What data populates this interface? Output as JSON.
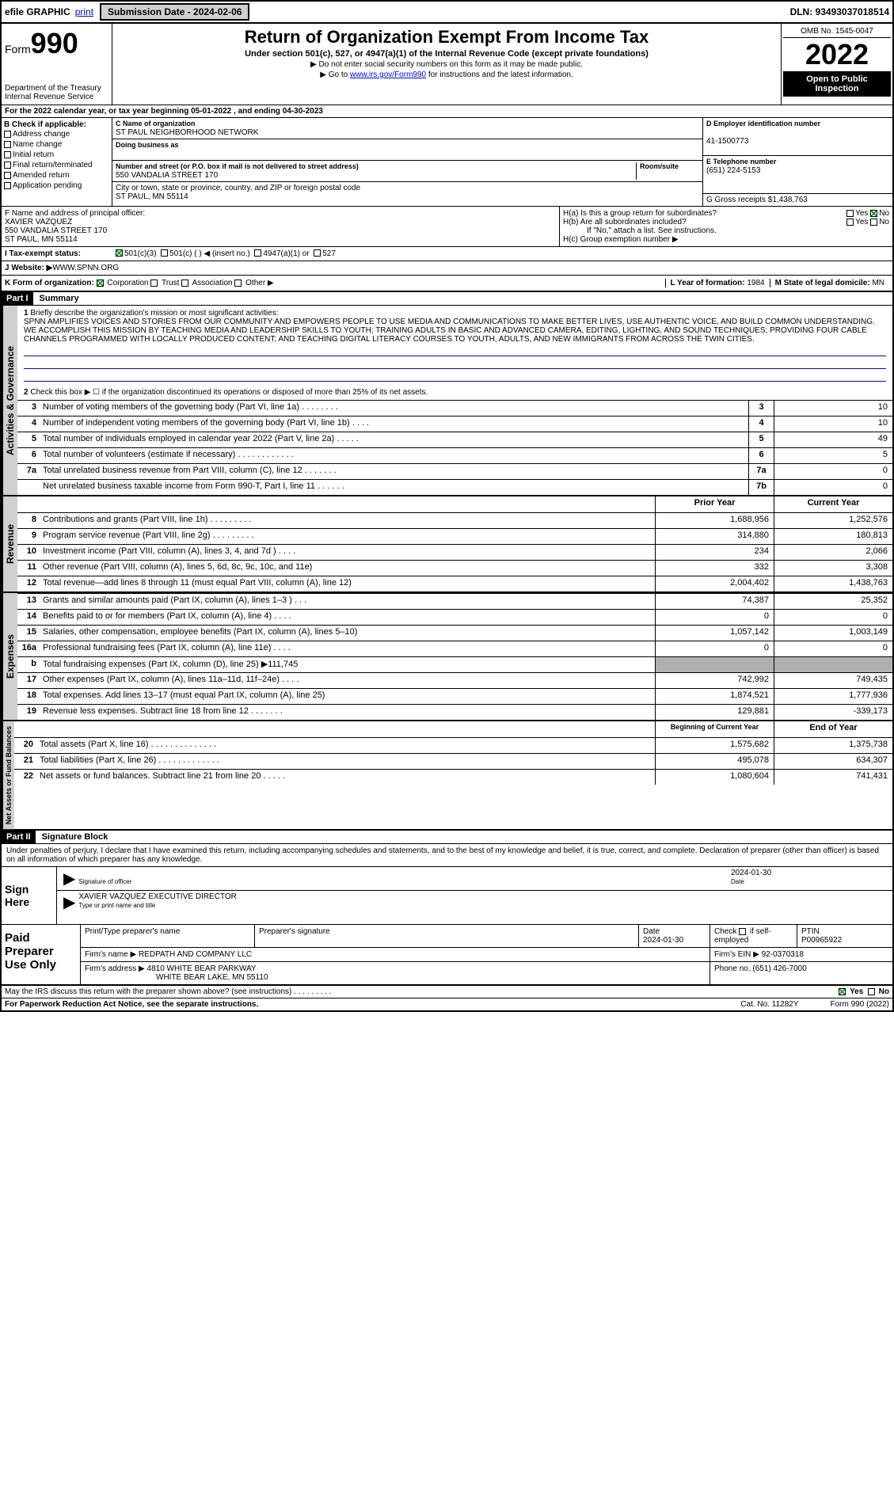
{
  "top": {
    "efile": "efile GRAPHIC",
    "print": "print",
    "sub_label": "Submission Date - 2024-02-06",
    "dln": "DLN: 93493037018514"
  },
  "header": {
    "form_label": "Form",
    "form_num": "990",
    "dept": "Department of the Treasury",
    "irs": "Internal Revenue Service",
    "title": "Return of Organization Exempt From Income Tax",
    "sub": "Under section 501(c), 527, or 4947(a)(1) of the Internal Revenue Code (except private foundations)",
    "note1": "▶ Do not enter social security numbers on this form as it may be made public.",
    "note2": "▶ Go to ",
    "link": "www.irs.gov/Form990",
    "note2b": " for instructions and the latest information.",
    "omb": "OMB No. 1545-0047",
    "year": "2022",
    "open": "Open to Public Inspection"
  },
  "a": {
    "line": "For the 2022 calendar year, or tax year beginning 05-01-2022   , and ending 04-30-2023",
    "b_label": "B Check if applicable:",
    "checks": [
      "Address change",
      "Name change",
      "Initial return",
      "Final return/terminated",
      "Amended return",
      "Application pending"
    ],
    "c_lbl": "C Name of organization",
    "c_name": "ST PAUL NEIGHBORHOOD NETWORK",
    "dba_lbl": "Doing business as",
    "addr_lbl": "Number and street (or P.O. box if mail is not delivered to street address)",
    "addr": "550 VANDALIA STREET 170",
    "room_lbl": "Room/suite",
    "city_lbl": "City or town, state or province, country, and ZIP or foreign postal code",
    "city": "ST PAUL, MN  55114",
    "d_lbl": "D Employer identification number",
    "d_val": "41-1500773",
    "e_lbl": "E Telephone number",
    "e_val": "(651) 224-5153",
    "g_lbl": "G Gross receipts $",
    "g_val": "1,438,763",
    "f_lbl": "F  Name and address of principal officer:",
    "f_name": "XAVIER VAZQUEZ",
    "f_addr1": "550 VANDALIA STREET 170",
    "f_addr2": "ST PAUL, MN  55114",
    "h_a": "H(a)  Is this a group return for subordinates?",
    "h_b": "H(b)  Are all subordinates included?",
    "h_note": "If \"No,\" attach a list. See instructions.",
    "h_c": "H(c)  Group exemption number ▶",
    "yes": "Yes",
    "no": "No"
  },
  "i": {
    "lbl": "I   Tax-exempt status:",
    "opts": [
      "501(c)(3)",
      "501(c) (  ) ◀ (insert no.)",
      "4947(a)(1) or",
      "527"
    ]
  },
  "j": {
    "lbl": "J   Website: ▶",
    "val": " WWW.SPNN.ORG"
  },
  "k": {
    "lbl": "K Form of organization:",
    "opts": [
      "Corporation",
      "Trust",
      "Association",
      "Other ▶"
    ],
    "l_lbl": "L Year of formation:",
    "l_val": "1984",
    "m_lbl": "M State of legal domicile:",
    "m_val": "MN"
  },
  "part1": {
    "hdr": "Part I",
    "title": "Summary",
    "tab1": "Activities & Governance",
    "tab2": "Revenue",
    "tab3": "Expenses",
    "tab4": "Net Assets or Fund Balances",
    "q1": "Briefly describe the organization's mission or most significant activities:",
    "mission": "SPNN AMPLIFIES VOICES AND STORIES FROM OUR COMMUNITY AND EMPOWERS PEOPLE TO USE MEDIA AND COMMUNICATIONS TO MAKE BETTER LIVES, USE AUTHENTIC VOICE, AND BUILD COMMON UNDERSTANDING. WE ACCOMPLISH THIS MISSION BY TEACHING MEDIA AND LEADERSHIP SKILLS TO YOUTH; TRAINING ADULTS IN BASIC AND ADVANCED CAMERA, EDITING, LIGHTING, AND SOUND TECHNIQUES; PROVIDING FOUR CABLE CHANNELS PROGRAMMED WITH LOCALLY PRODUCED CONTENT; AND TEACHING DIGITAL LITERACY COURSES TO YOUTH, ADULTS, AND NEW IMMIGRANTS FROM ACROSS THE TWIN CITIES.",
    "q2": "Check this box ▶ ☐ if the organization discontinued its operations or disposed of more than 25% of its net assets.",
    "lines_gov": [
      {
        "n": "3",
        "t": "Number of voting members of the governing body (Part VI, line 1a)   .    .    .    .    .    .    .    .",
        "b": "3",
        "v": "10"
      },
      {
        "n": "4",
        "t": "Number of independent voting members of the governing body (Part VI, line 1b)   .    .    .    .",
        "b": "4",
        "v": "10"
      },
      {
        "n": "5",
        "t": "Total number of individuals employed in calendar year 2022 (Part V, line 2a)   .    .    .    .    .",
        "b": "5",
        "v": "49"
      },
      {
        "n": "6",
        "t": "Total number of volunteers (estimate if necessary)   .    .    .    .    .    .    .    .    .    .    .    .",
        "b": "6",
        "v": "5"
      },
      {
        "n": "7a",
        "t": "Total unrelated business revenue from Part VIII, column (C), line 12   .    .    .    .    .    .    .",
        "b": "7a",
        "v": "0"
      },
      {
        "n": "",
        "t": "Net unrelated business taxable income from Form 990-T, Part I, line 11   .    .    .    .    .    .",
        "b": "7b",
        "v": "0"
      }
    ],
    "hdr_prior": "Prior Year",
    "hdr_curr": "Current Year",
    "lines_rev": [
      {
        "n": "8",
        "t": "Contributions and grants (Part VIII, line 1h)   .    .    .    .    .    .    .    .    .",
        "p": "1,688,956",
        "c": "1,252,576"
      },
      {
        "n": "9",
        "t": "Program service revenue (Part VIII, line 2g)   .    .    .    .    .    .    .    .    .",
        "p": "314,880",
        "c": "180,813"
      },
      {
        "n": "10",
        "t": "Investment income (Part VIII, column (A), lines 3, 4, and 7d )   .    .    .    .",
        "p": "234",
        "c": "2,066"
      },
      {
        "n": "11",
        "t": "Other revenue (Part VIII, column (A), lines 5, 6d, 8c, 9c, 10c, and 11e)",
        "p": "332",
        "c": "3,308"
      },
      {
        "n": "12",
        "t": "Total revenue—add lines 8 through 11 (must equal Part VIII, column (A), line 12)",
        "p": "2,004,402",
        "c": "1,438,763"
      }
    ],
    "lines_exp": [
      {
        "n": "13",
        "t": "Grants and similar amounts paid (Part IX, column (A), lines 1–3 )   .    .    .",
        "p": "74,387",
        "c": "25,352"
      },
      {
        "n": "14",
        "t": "Benefits paid to or for members (Part IX, column (A), line 4)   .    .    .    .",
        "p": "0",
        "c": "0"
      },
      {
        "n": "15",
        "t": "Salaries, other compensation, employee benefits (Part IX, column (A), lines 5–10)",
        "p": "1,057,142",
        "c": "1,003,149"
      },
      {
        "n": "16a",
        "t": "Professional fundraising fees (Part IX, column (A), line 11e)   .    .    .    .",
        "p": "0",
        "c": "0"
      },
      {
        "n": "b",
        "t": "Total fundraising expenses (Part IX, column (D), line 25) ▶111,745",
        "p": "",
        "c": "",
        "shade": true
      },
      {
        "n": "17",
        "t": "Other expenses (Part IX, column (A), lines 11a–11d, 11f–24e)   .    .    .    .",
        "p": "742,992",
        "c": "749,435"
      },
      {
        "n": "18",
        "t": "Total expenses. Add lines 13–17 (must equal Part IX, column (A), line 25)",
        "p": "1,874,521",
        "c": "1,777,936"
      },
      {
        "n": "19",
        "t": "Revenue less expenses. Subtract line 18 from line 12   .    .    .    .    .    .    .",
        "p": "129,881",
        "c": "-339,173"
      }
    ],
    "hdr_begin": "Beginning of Current Year",
    "hdr_end": "End of Year",
    "lines_net": [
      {
        "n": "20",
        "t": "Total assets (Part X, line 16)   .    .    .    .    .    .    .    .    .    .    .    .    .    .",
        "p": "1,575,682",
        "c": "1,375,738"
      },
      {
        "n": "21",
        "t": "Total liabilities (Part X, line 26)   .    .    .    .    .    .    .    .    .    .    .    .    .",
        "p": "495,078",
        "c": "634,307"
      },
      {
        "n": "22",
        "t": "Net assets or fund balances. Subtract line 21 from line 20   .    .    .    .    .",
        "p": "1,080,604",
        "c": "741,431"
      }
    ]
  },
  "part2": {
    "hdr": "Part II",
    "title": "Signature Block",
    "decl": "Under penalties of perjury, I declare that I have examined this return, including accompanying schedules and statements, and to the best of my knowledge and belief, it is true, correct, and complete. Declaration of preparer (other than officer) is based on all information of which preparer has any knowledge."
  },
  "sign": {
    "left": "Sign Here",
    "sig_lbl": "Signature of officer",
    "date_lbl": "Date",
    "date": "2024-01-30",
    "name": "XAVIER VAZQUEZ  EXECUTIVE DIRECTOR",
    "name_lbl": "Type or print name and title"
  },
  "paid": {
    "left": "Paid Preparer Use Only",
    "h1": "Print/Type preparer's name",
    "h2": "Preparer's signature",
    "h3": "Date",
    "date": "2024-01-30",
    "h4_a": "Check",
    "h4_b": "if self-employed",
    "h5": "PTIN",
    "ptin": "P00965922",
    "firm_lbl": "Firm's name     ▶",
    "firm": "REDPATH AND COMPANY LLC",
    "ein_lbl": "Firm's EIN ▶",
    "ein": "92-0370318",
    "addr_lbl": "Firm's address ▶",
    "addr1": "4810 WHITE BEAR PARKWAY",
    "addr2": "WHITE BEAR LAKE, MN  55110",
    "phone_lbl": "Phone no.",
    "phone": "(651) 426-7000"
  },
  "bottom": {
    "q": "May the IRS discuss this return with the preparer shown above? (see instructions)   .    .    .    .    .    .    .    .    .",
    "yes": "Yes",
    "no": "No",
    "pra": "For Paperwork Reduction Act Notice, see the separate instructions.",
    "cat": "Cat. No. 11282Y",
    "form": "Form 990 (2022)"
  }
}
